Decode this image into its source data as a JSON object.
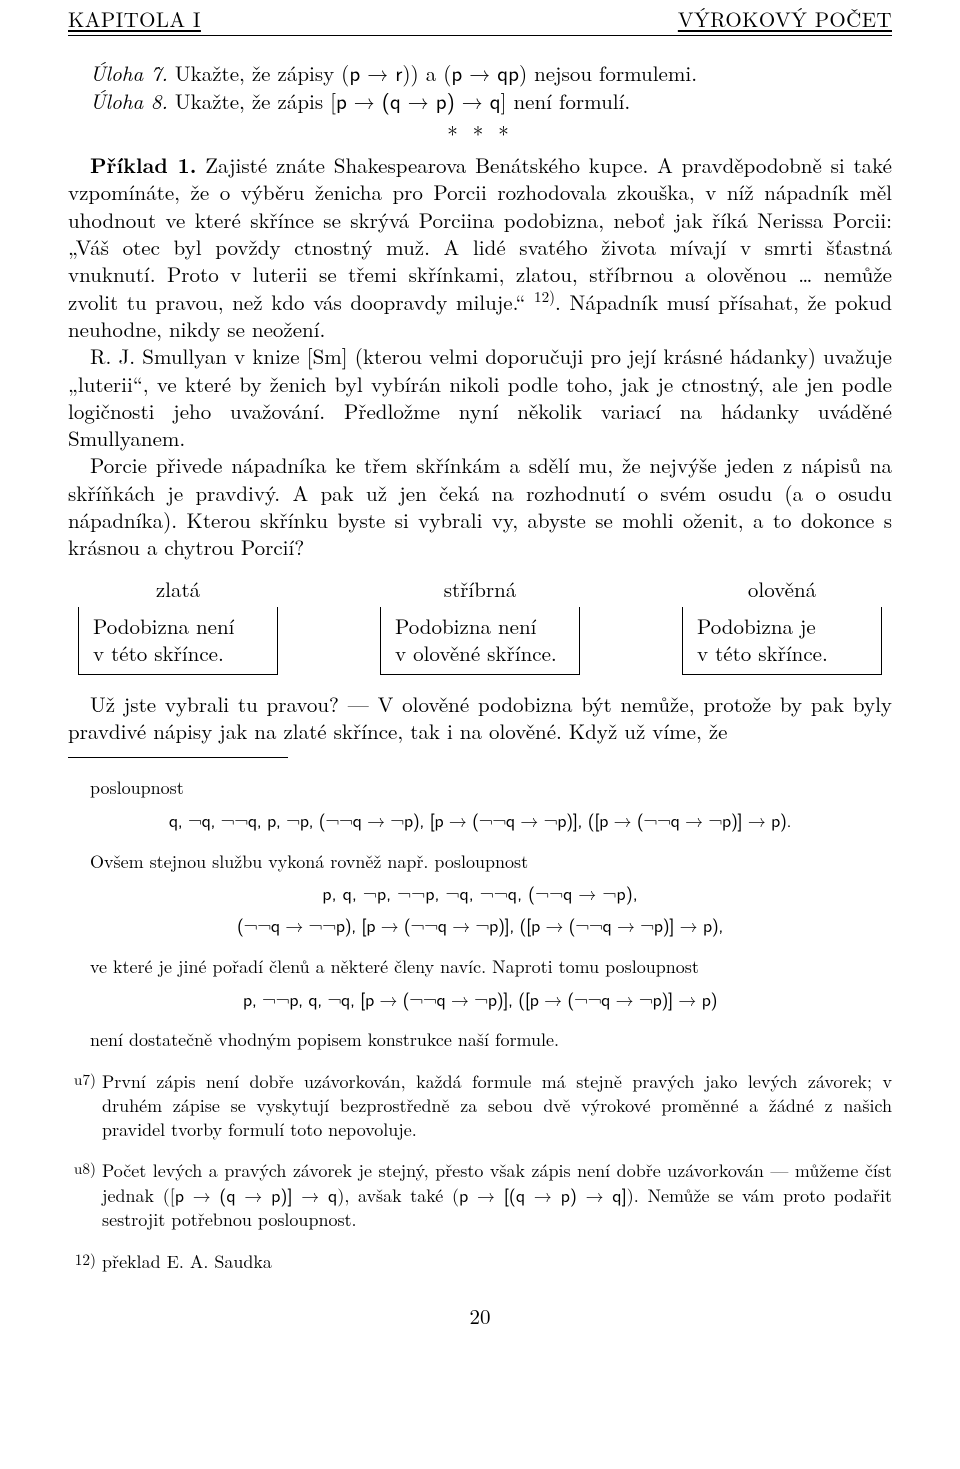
{
  "header": {
    "left": "KAPITOLA I",
    "right": "VÝROKOVÝ POČET"
  },
  "uloha7": {
    "label": "Úloha 7.",
    "text_a": " Ukažte, že zápisy (",
    "f1": "p → r",
    "text_b": ")) a (",
    "f2": "p → qp",
    "text_c": ") nejsou formulemi."
  },
  "uloha8": {
    "label": "Úloha 8.",
    "text_a": " Ukažte, že zápis [",
    "f1": "p → (q → p) → q",
    "text_b": "] není formulí."
  },
  "stars": "*  *  *",
  "priklad": {
    "label": "Příklad 1.",
    "body": " Zajisté znáte Shakespearova Benátského kupce. A pravděpodobně si také vzpomínáte, že o výběru ženicha pro Porcii rozhodovala zkouška, v níž nápadník měl uhodnout ve které skřínce se skrývá Porciina podobizna, neboť jak říká Nerissa Porcii: „Váš otec byl povždy ctnostný muž. A lidé svatého života mívají v smrti šťastná vnuknutí. Proto v luterii se třemi skřínkami, zlatou, stříbrnou a olověnou … nemůže zvolit tu pravou, než kdo vás doopravdy miluje.“ ",
    "ref": "12)",
    "body2": ". Nápadník musí přísahat, že pokud neuhodne, nikdy se neožení."
  },
  "para_rj": "R. J. Smullyan v knize [Sm] (kterou velmi doporučuji pro její krásné hádanky) uvažuje „luterii“, ve které by ženich byl vybírán nikoli podle toho, jak je ctnostný, ale jen podle logičnosti jeho uvažování. Předložme nyní několik variací na hádanky uváděné Smullyanem.",
  "para_porcie": "Porcie přivede nápadníka ke třem skřínkám a sdělí mu, že nejvýše jeden z nápisů na skříňkách je pravdivý. A pak už jen čeká na rozhodnutí o svém osudu (a o osudu nápadníka). Kterou skřínku byste si vybrali vy, abyste se mohli oženit, a to dokonce s krásnou a chytrou Porcií?",
  "boxes": {
    "gold": {
      "label": "zlatá",
      "line1": "Podobizna není",
      "line2": "v této skřínce."
    },
    "silver": {
      "label": "stříbrná",
      "line1": "Podobizna není",
      "line2": "v olověné skřínce."
    },
    "lead": {
      "label": "olověná",
      "line1": "Podobizna je",
      "line2": "v této skřínce."
    }
  },
  "para_uz": "Už jste vybrali tu pravou? — V olověné podobizna být nemůže, protože by pak byly pravdivé nápisy jak na zlaté skřínce, tak i na olověné. Když už víme, že",
  "fn_top": {
    "posl": "posloupnost",
    "seq1": "q, ¬q, ¬¬q, p, ¬p, (¬¬q → ¬p), [p → (¬¬q → ¬p)], ([p → (¬¬q → ¬p)] → p).",
    "ovs": "Ovšem stejnou službu vykoná rovněž např. posloupnost",
    "seq2a": "p, q, ¬p, ¬¬p, ¬q, ¬¬q, (¬¬q → ¬p),",
    "seq2b": "(¬¬q → ¬¬p), [p → (¬¬q → ¬p)], ([p → (¬¬q → ¬p)] → p),",
    "ve": "ve které je jiné pořadí členů a některé členy navíc. Naproti tomu posloupnost",
    "seq3": "p, ¬¬p, q, ¬q, [p → (¬¬q → ¬p)], ([p → (¬¬q → ¬p)] → p)",
    "neni": "není dostatečně vhodným popisem konstrukce naší formule."
  },
  "fn_u7": {
    "tag": "u7)",
    "text": "První zápis není dobře uzávorkován, každá formule má stejně pravých jako levých závorek; v druhém zápise se vyskytují bezprostředně za sebou dvě výrokové proměnné a žádné z našich pravidel tvorby formulí toto nepovoluje."
  },
  "fn_u8": {
    "tag": "u8)",
    "text_a": "Počet levých a pravých závorek je stejný, přesto však zápis není dobře uzávorkován — můžeme číst jednak ([",
    "f1": "p → (q → p)] → q",
    "text_b": "), avšak také (",
    "f2": "p → [(q → p) → q]",
    "text_c": "). Nemůže se vám proto podařit sestrojit potřebnou posloupnost."
  },
  "fn_12": {
    "tag": "12)",
    "text": "překlad E. A. Saudka"
  },
  "page_number": "20"
}
